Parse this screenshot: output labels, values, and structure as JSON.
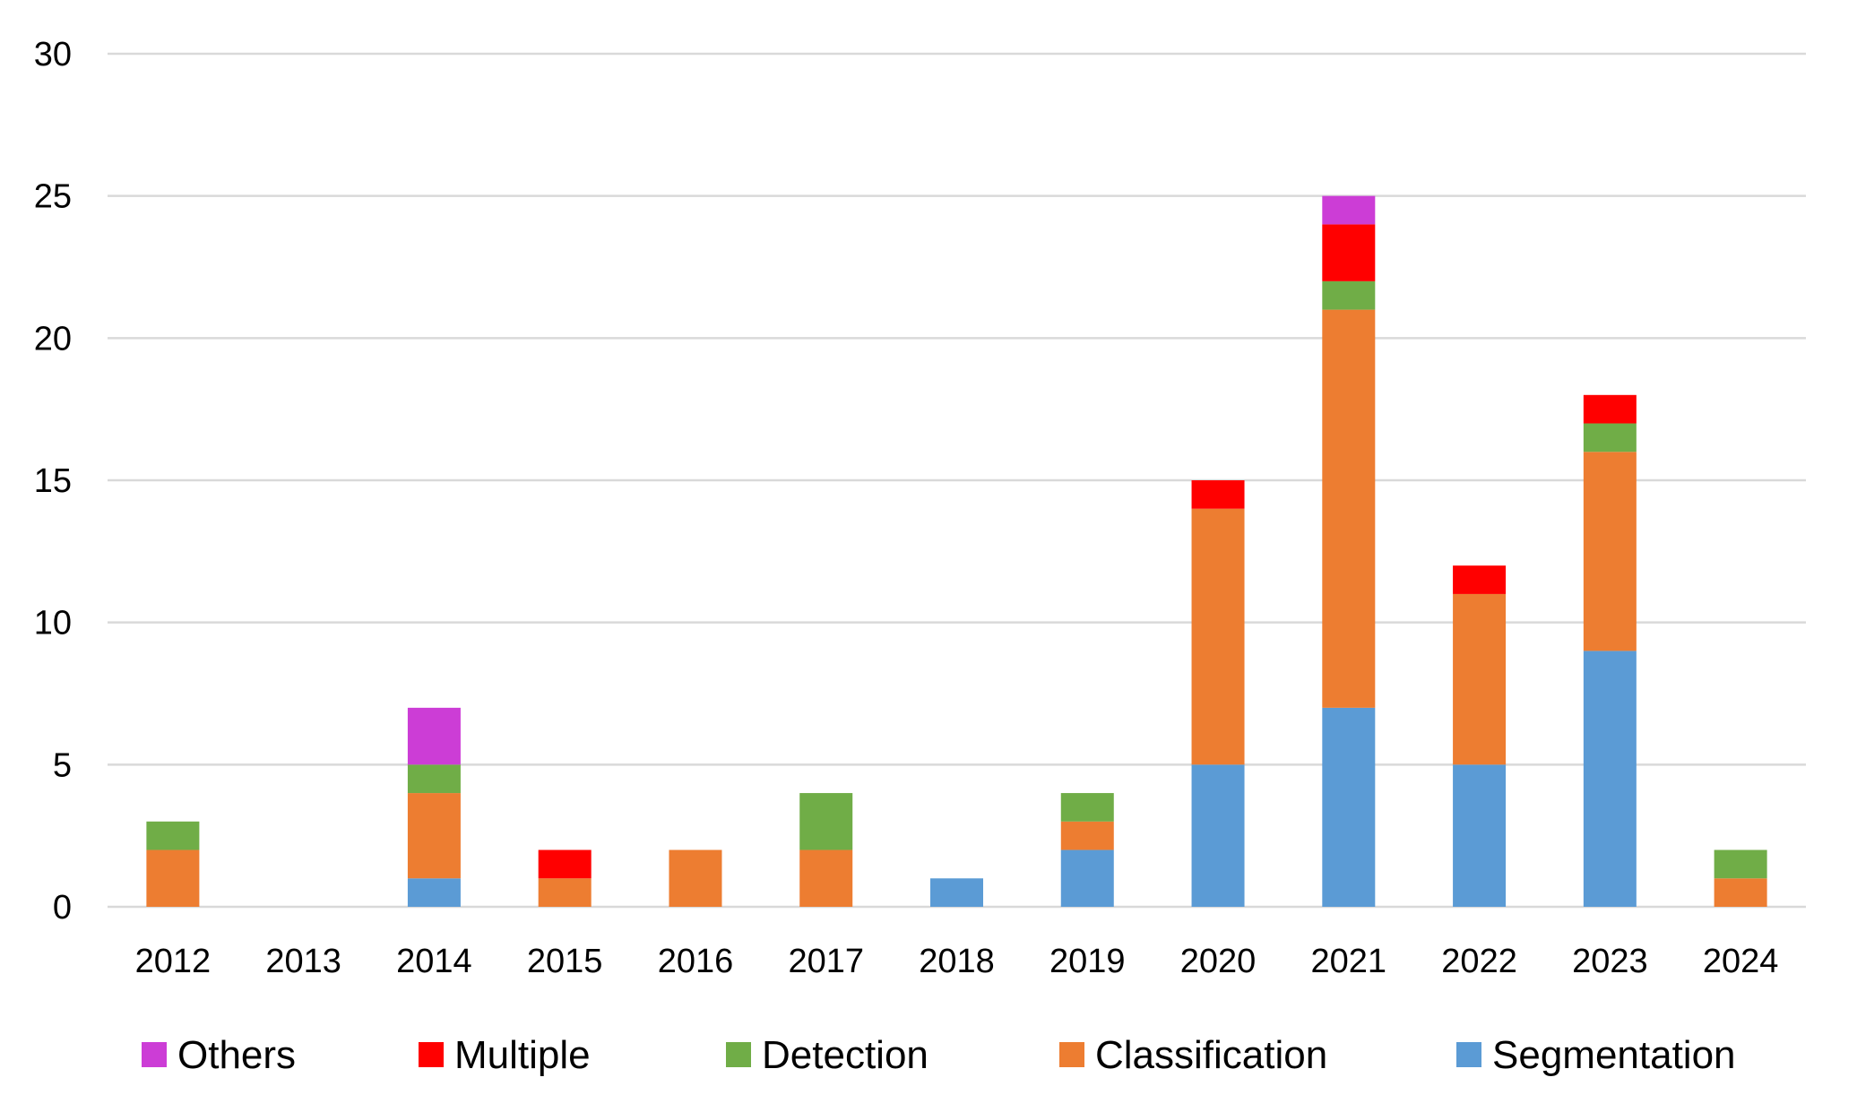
{
  "chart_data": {
    "type": "bar",
    "stacked": true,
    "title": "",
    "xlabel": "",
    "ylabel": "",
    "ylim": [
      0,
      30
    ],
    "yticks": [
      "0",
      "5",
      "10",
      "15",
      "20",
      "25",
      "30"
    ],
    "grid": true,
    "legend_position": "bottom",
    "categories": [
      "2012",
      "2013",
      "2014",
      "2015",
      "2016",
      "2017",
      "2018",
      "2019",
      "2020",
      "2021",
      "2022",
      "2023",
      "2024"
    ],
    "series": [
      {
        "name": "Segmentation",
        "color": "#5b9bd5",
        "values": [
          0,
          0,
          1,
          0,
          0,
          0,
          1,
          2,
          5,
          7,
          5,
          9,
          0
        ]
      },
      {
        "name": "Classification",
        "color": "#ed7d31",
        "values": [
          2,
          0,
          3,
          1,
          2,
          2,
          0,
          1,
          9,
          14,
          6,
          7,
          1
        ]
      },
      {
        "name": "Detection",
        "color": "#70ad47",
        "values": [
          1,
          0,
          1,
          0,
          0,
          2,
          0,
          1,
          0,
          1,
          0,
          1,
          1
        ]
      },
      {
        "name": "Multiple",
        "color": "#ff0000",
        "values": [
          0,
          0,
          0,
          1,
          0,
          0,
          0,
          0,
          1,
          2,
          1,
          1,
          0
        ]
      },
      {
        "name": "Others",
        "color": "#cc3dd6",
        "values": [
          0,
          0,
          2,
          0,
          0,
          0,
          0,
          0,
          0,
          1,
          0,
          0,
          0
        ]
      }
    ],
    "legend_order": [
      "Others",
      "Multiple",
      "Detection",
      "Classification",
      "Segmentation"
    ]
  }
}
